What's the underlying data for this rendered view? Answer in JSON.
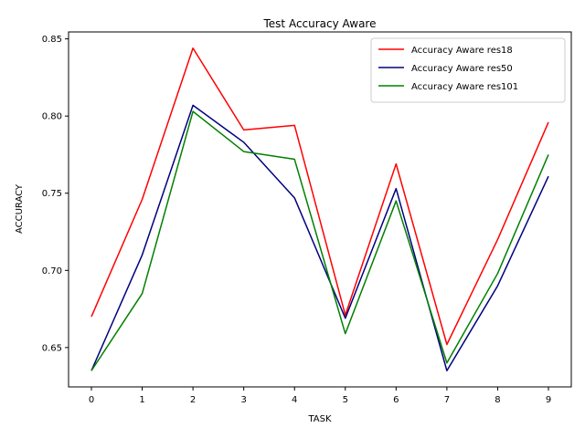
{
  "chart_data": {
    "type": "line",
    "title": "Test Accuracy Aware",
    "xlabel": "TASK",
    "ylabel": "ACCURACY",
    "x": [
      0,
      1,
      2,
      3,
      4,
      5,
      6,
      7,
      8,
      9
    ],
    "xticks": [
      "0",
      "1",
      "2",
      "3",
      "4",
      "5",
      "6",
      "7",
      "8",
      "9"
    ],
    "yticks": [
      0.65,
      0.7,
      0.75,
      0.8,
      0.85
    ],
    "ytick_labels": [
      "0.65",
      "0.70",
      "0.75",
      "0.80",
      "0.85"
    ],
    "xlim": [
      -0.45,
      9.45
    ],
    "ylim": [
      0.6245,
      0.8545
    ],
    "grid": false,
    "legend_position": "top-right",
    "series": [
      {
        "name": "Accuracy Aware res18",
        "color": "#ff0000",
        "values": [
          0.67,
          0.746,
          0.844,
          0.791,
          0.794,
          0.671,
          0.769,
          0.652,
          0.72,
          0.796
        ]
      },
      {
        "name": "Accuracy Aware res50",
        "color": "#000080",
        "values": [
          0.635,
          0.71,
          0.807,
          0.783,
          0.747,
          0.669,
          0.753,
          0.635,
          0.69,
          0.761
        ]
      },
      {
        "name": "Accuracy Aware res101",
        "color": "#008000",
        "values": [
          0.635,
          0.685,
          0.803,
          0.777,
          0.772,
          0.659,
          0.745,
          0.64,
          0.698,
          0.775
        ]
      }
    ]
  }
}
